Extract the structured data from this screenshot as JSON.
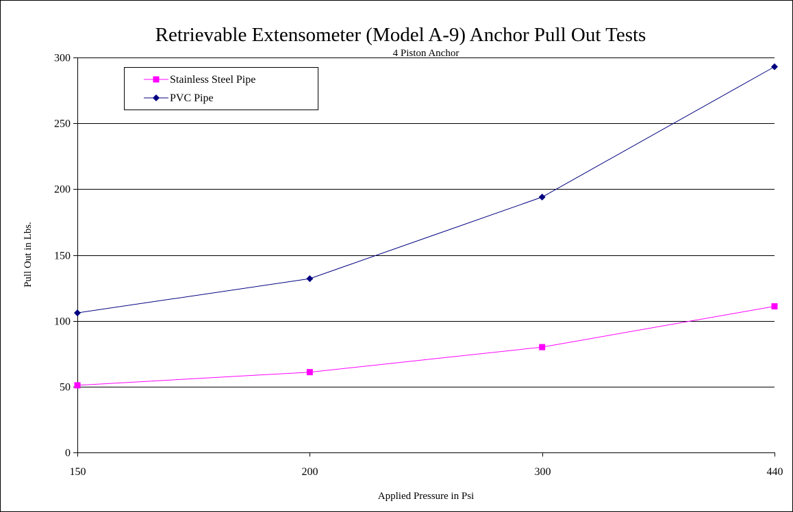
{
  "chart_data": {
    "type": "line",
    "title": "Retrievable Extensometer (Model A-9) Anchor Pull Out Tests",
    "subtitle": "4 Piston Anchor",
    "xlabel": "Applied Pressure in Psi",
    "ylabel": "Pull Out in Lbs.",
    "categories": [
      "150",
      "200",
      "300",
      "440"
    ],
    "ylim": [
      0,
      300
    ],
    "yticks": [
      0,
      50,
      100,
      150,
      200,
      250,
      300
    ],
    "grid": "horizontal",
    "legend_position": "top-left",
    "series": [
      {
        "name": "Stainless Steel Pipe",
        "values": [
          51,
          61,
          80,
          111
        ],
        "color": "#ff00ff",
        "marker": "square"
      },
      {
        "name": "PVC Pipe",
        "values": [
          106,
          132,
          194,
          293
        ],
        "color": "#000080",
        "marker": "diamond"
      }
    ]
  }
}
